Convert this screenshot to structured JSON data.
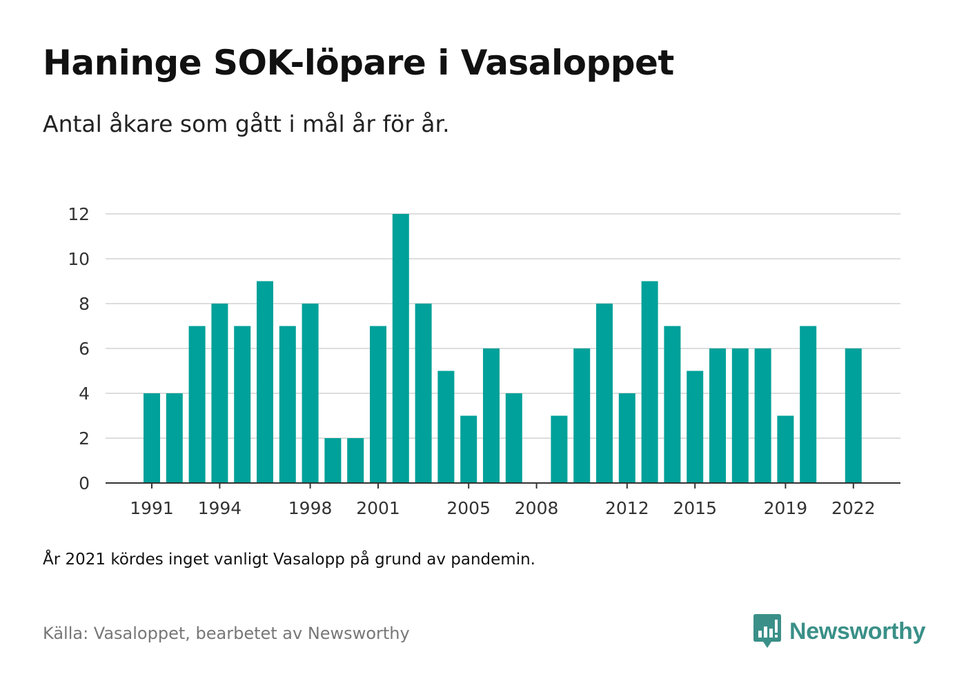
{
  "header": {
    "title": "Haninge SOK-löpare i Vasaloppet",
    "subtitle": "Antal åkare som gått i mål år för år."
  },
  "chart_data": {
    "type": "bar",
    "categories": [
      1991,
      1992,
      1993,
      1994,
      1995,
      1996,
      1997,
      1998,
      1999,
      2000,
      2001,
      2002,
      2003,
      2004,
      2005,
      2006,
      2007,
      2008,
      2009,
      2010,
      2011,
      2012,
      2013,
      2014,
      2015,
      2016,
      2017,
      2018,
      2019,
      2020,
      2021,
      2022
    ],
    "values": [
      4,
      4,
      7,
      8,
      7,
      9,
      7,
      8,
      2,
      2,
      7,
      12,
      8,
      5,
      3,
      6,
      4,
      0,
      3,
      6,
      8,
      4,
      9,
      7,
      5,
      6,
      6,
      6,
      3,
      7,
      null,
      6
    ],
    "x_tick_labels": [
      "1991",
      "1994",
      "1998",
      "2001",
      "2005",
      "2008",
      "2012",
      "2015",
      "2019",
      "2022"
    ],
    "y_ticks": [
      0,
      2,
      4,
      6,
      8,
      10,
      12
    ],
    "ylim": [
      0,
      12
    ],
    "grid": true,
    "bar_color": "#00a19a",
    "grid_color": "#dddddd",
    "axis_color": "#333333"
  },
  "footer": {
    "note": "År 2021 kördes inget vanligt Vasalopp på grund av pandemin.",
    "source": "Källa: Vasaloppet, bearbetet av Newsworthy",
    "brand_name": "Newsworthy",
    "brand_icon": "newsworthy-logo-icon",
    "brand_color": "#3a9088"
  }
}
